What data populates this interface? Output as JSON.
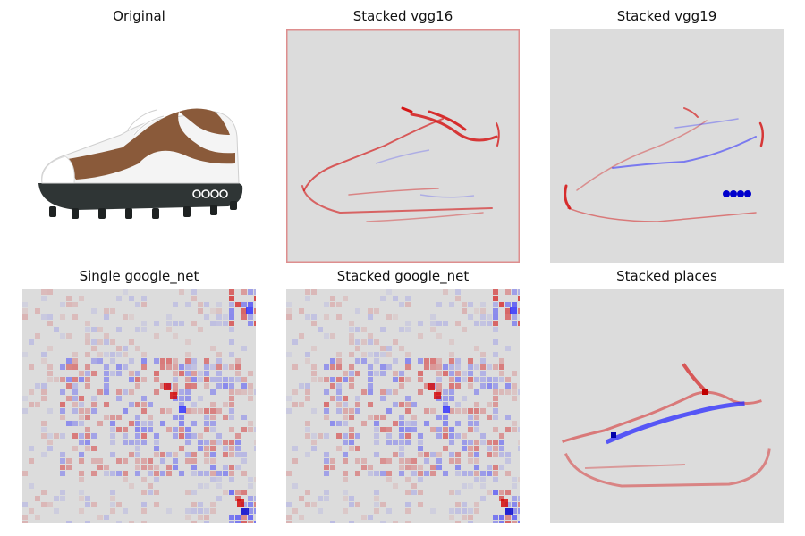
{
  "figure": {
    "panels": [
      {
        "id": "original",
        "title": "Original"
      },
      {
        "id": "stacked-vgg16",
        "title": "Stacked vgg16"
      },
      {
        "id": "stacked-vgg19",
        "title": "Stacked vgg19"
      },
      {
        "id": "single-google-net",
        "title": "Single google_net"
      },
      {
        "id": "stacked-google-net",
        "title": "Stacked google_net"
      },
      {
        "id": "stacked-places",
        "title": "Stacked places"
      }
    ],
    "colors": {
      "map_background": "#dcdcdc",
      "positive": "#d40000",
      "negative": "#1a1aff"
    }
  }
}
